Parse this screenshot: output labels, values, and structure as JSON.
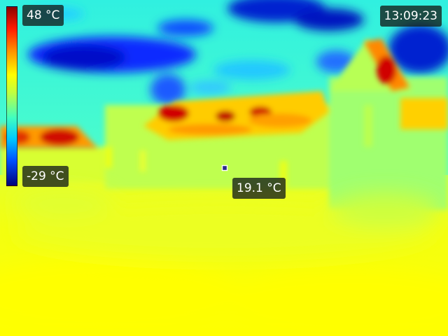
{
  "scale": {
    "max_label": "48 °C",
    "min_label": "-29 °C",
    "max_value": 48,
    "min_value": -29,
    "palette": "rainbow"
  },
  "clock": {
    "time": "13:09:23"
  },
  "spot": {
    "reading": "19.1 °C",
    "value": 19.1
  },
  "colors": {
    "hot": "#c40000",
    "warm": "#ff9a00",
    "mid": "#ffff00",
    "cool": "#40ffc0",
    "cold": "#0a2cff",
    "coldest": "#00007a"
  }
}
